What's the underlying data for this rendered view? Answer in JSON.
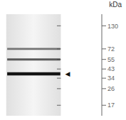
{
  "chart_data": {
    "type": "gel",
    "log": "y",
    "ylim": [
      13,
      175
    ],
    "yticks": [
      130,
      72,
      55,
      43,
      34,
      26,
      17
    ],
    "grid": false,
    "bands": [
      {
        "position": 72,
        "intensity": 0.55,
        "height": 3.5
      },
      {
        "position": 55,
        "intensity": 0.65,
        "height": 3.0
      },
      {
        "position": 38,
        "intensity": 0.92,
        "height": 3.0
      }
    ],
    "annotations": [
      {
        "text": "kDa"
      },
      {
        "text": "◀",
        "y": 38,
        "color": "#111111"
      }
    ]
  }
}
